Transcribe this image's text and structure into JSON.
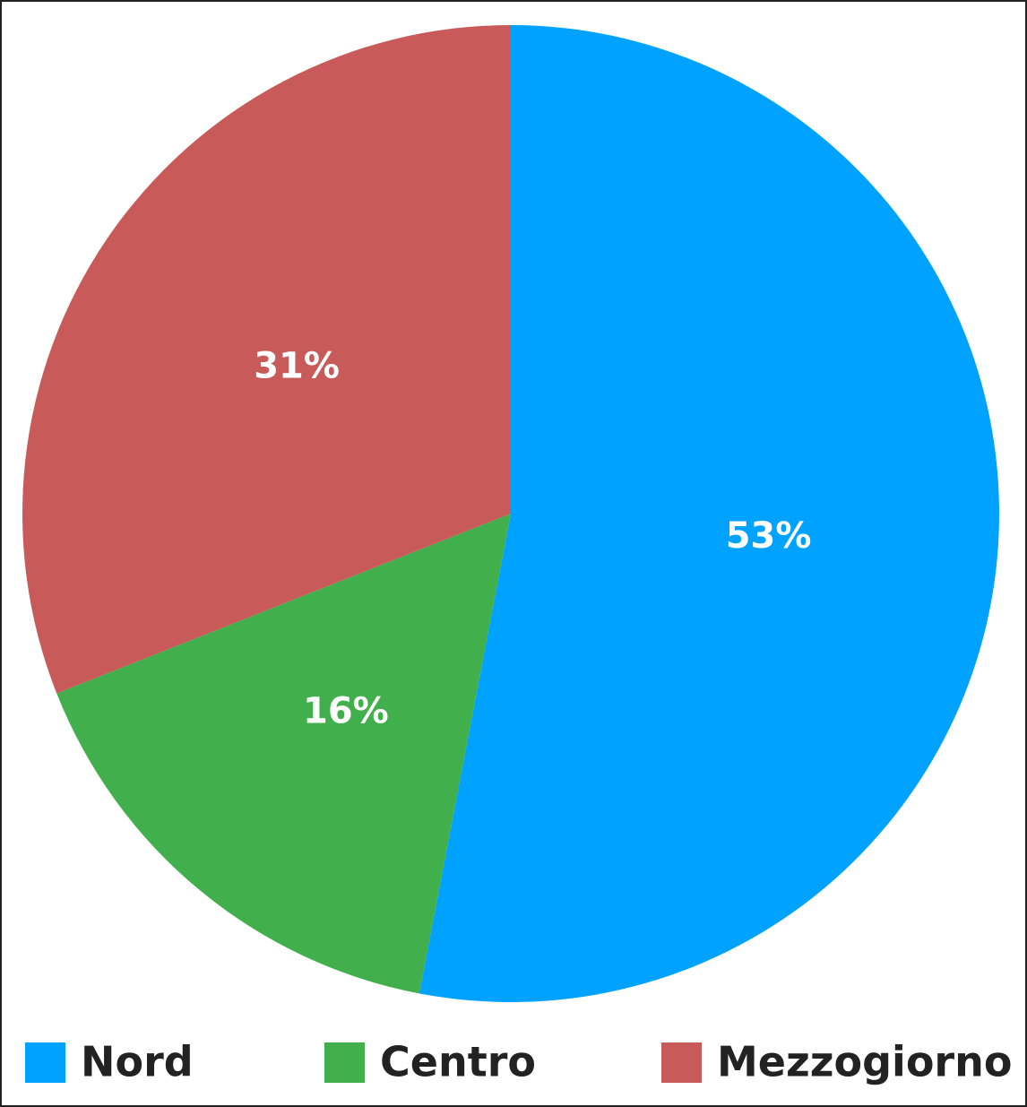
{
  "chart_data": {
    "type": "pie",
    "categories": [
      "Nord",
      "Centro",
      "Mezzogiorno"
    ],
    "values": [
      53,
      16,
      31
    ],
    "value_labels": [
      "53%",
      "16%",
      "31%"
    ],
    "colors": [
      "#00a2ff",
      "#41b04c",
      "#c85a5a"
    ],
    "legend": "bottom"
  }
}
